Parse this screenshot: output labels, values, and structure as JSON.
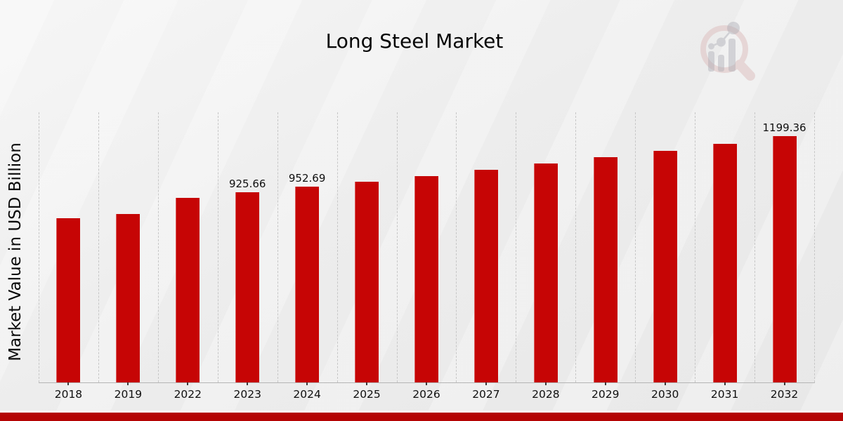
{
  "page": {
    "title": "Long Steel Market"
  },
  "chart_data": {
    "type": "bar",
    "title": "Long Steel Market",
    "xlabel": "",
    "ylabel": "Market Value in USD Billion",
    "categories": [
      "2018",
      "2019",
      "2022",
      "2023",
      "2024",
      "2025",
      "2026",
      "2027",
      "2028",
      "2029",
      "2030",
      "2031",
      "2032"
    ],
    "values": [
      800,
      820,
      900,
      925.66,
      952.69,
      977,
      1005,
      1034,
      1066,
      1096,
      1128,
      1162,
      1199.36
    ],
    "value_labels": [
      "",
      "",
      "",
      "925.66",
      "952.69",
      "",
      "",
      "",
      "",
      "",
      "",
      "",
      "1199.36"
    ],
    "ylim": [
      0,
      1315
    ],
    "grid": "vertical-dashed",
    "legend": "none",
    "bar_color": "#c60505"
  },
  "colors": {
    "bar": "#c60505",
    "footer_stripe": "#b50404",
    "gridline": "#c7c7c7",
    "axis_line": "#b5b5b5",
    "text": "#0a0a0a",
    "logo_ring": "#dcbcbc",
    "logo_gray": "#a9a9b2"
  },
  "icons": {
    "brand_logo": "magnifier-bar-chart-watermark"
  }
}
